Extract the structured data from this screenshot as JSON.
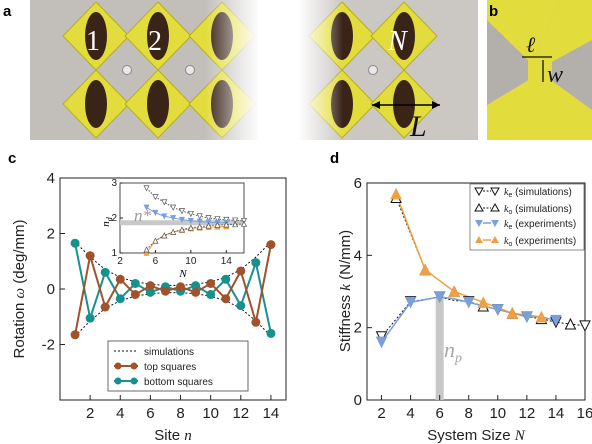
{
  "colors": {
    "top": "#a0522d",
    "bottom": "#17918e",
    "ke_exp": "#7b9fd8",
    "ko_exp": "#f0a043",
    "sim": "#111111",
    "yellow": "#e2dc3c",
    "np_bar": "#c8c8c8"
  },
  "panel_a": {
    "letter": "a",
    "site_labels": [
      "1",
      "2",
      "N"
    ],
    "length_label": "L"
  },
  "panel_b": {
    "letter": "b",
    "ell_label": "ℓ",
    "w_label": "w"
  },
  "panel_c": {
    "letter": "c",
    "ylabel_prefix": "Rotation ",
    "ylabel_sym": "ω",
    "ylabel_unit": " (deg/mm)",
    "xlabel_prefix": "Site ",
    "xlabel_sym": "n",
    "inset": {
      "nstar_label": "n*",
      "ylabel": "n",
      "ylabel_sub": "d",
      "xlabel": "N",
      "xticks": [
        "2",
        "6",
        "10",
        "14"
      ],
      "yticks": [
        "1",
        "2",
        "3"
      ]
    },
    "legend": {
      "sim": "simulations",
      "top": "top squares",
      "bottom": "bottom squares"
    }
  },
  "panel_d": {
    "letter": "d",
    "ylabel_prefix": "Stiffness ",
    "ylabel_sym": "k",
    "ylabel_unit": " (N/mm)",
    "xlabel_prefix": "System Size ",
    "xlabel_sym": "N",
    "np_label": "n",
    "np_sub": "p",
    "legend": [
      {
        "sym": "k",
        "sub": "e",
        "text": " (simulations)"
      },
      {
        "sym": "k",
        "sub": "o",
        "text": " (simulations)"
      },
      {
        "sym": "k",
        "sub": "e",
        "text": " (experiments)"
      },
      {
        "sym": "k",
        "sub": "o",
        "text": " (experiments)"
      }
    ]
  },
  "chart_data": [
    {
      "panel": "c",
      "type": "line",
      "xlabel": "Site n",
      "ylabel": "Rotation ω (deg/mm)",
      "xlim": [
        0,
        15
      ],
      "ylim": [
        -4,
        4
      ],
      "xticks": [
        2,
        4,
        6,
        8,
        10,
        12,
        14
      ],
      "yticks": [
        -2,
        0,
        2,
        4
      ],
      "series": [
        {
          "name": "top squares",
          "x": [
            1,
            2,
            3,
            4,
            5,
            6,
            7,
            8,
            9,
            10,
            11,
            12,
            13,
            14
          ],
          "y": [
            -1.65,
            1.2,
            -0.65,
            0.35,
            -0.2,
            0.12,
            -0.08,
            0.08,
            -0.12,
            0.2,
            -0.35,
            0.65,
            -1.2,
            1.6
          ]
        },
        {
          "name": "bottom squares",
          "x": [
            1,
            2,
            3,
            4,
            5,
            6,
            7,
            8,
            9,
            10,
            11,
            12,
            13,
            14
          ],
          "y": [
            1.65,
            -1.05,
            0.6,
            -0.35,
            0.2,
            -0.12,
            0.08,
            -0.08,
            0.12,
            -0.2,
            0.35,
            -0.6,
            0.95,
            -1.6
          ]
        },
        {
          "name": "simulations",
          "x": [
            1,
            2,
            3,
            4,
            5,
            6,
            7,
            8,
            9,
            10,
            11,
            12,
            13,
            14
          ],
          "envelope": [
            1.7,
            1.15,
            0.7,
            0.42,
            0.26,
            0.17,
            0.13,
            0.13,
            0.17,
            0.26,
            0.42,
            0.7,
            1.15,
            1.7
          ]
        }
      ]
    },
    {
      "panel": "c-inset",
      "type": "line",
      "xlabel": "N",
      "ylabel": "n_d",
      "xlim": [
        2,
        16
      ],
      "ylim": [
        1,
        3
      ],
      "nstar": 1.85,
      "series": [
        {
          "name": "simulations upper",
          "x": [
            5,
            6,
            7,
            8,
            9,
            10,
            11,
            12,
            13,
            14,
            15,
            16
          ],
          "y": [
            2.85,
            2.6,
            2.45,
            2.3,
            2.2,
            2.12,
            2.05,
            2.0,
            1.97,
            1.95,
            1.93,
            1.92
          ]
        },
        {
          "name": "ke experiments",
          "x": [
            5,
            6,
            7,
            8,
            9,
            10,
            11,
            12,
            13,
            14
          ],
          "y": [
            2.3,
            2.15,
            2.05,
            2.0,
            1.95,
            1.92,
            1.9,
            1.88,
            1.87,
            1.86
          ]
        },
        {
          "name": "ko experiments",
          "x": [
            5,
            6,
            7,
            8,
            9,
            10,
            11,
            12,
            13,
            14
          ],
          "y": [
            1.0,
            1.35,
            1.5,
            1.6,
            1.65,
            1.7,
            1.72,
            1.74,
            1.75,
            1.76
          ]
        },
        {
          "name": "simulations lower",
          "x": [
            5,
            6,
            7,
            8,
            9,
            10,
            11,
            12,
            13,
            14,
            15,
            16
          ],
          "y": [
            1.1,
            1.35,
            1.5,
            1.6,
            1.67,
            1.72,
            1.75,
            1.78,
            1.8,
            1.81,
            1.82,
            1.83
          ]
        }
      ]
    },
    {
      "panel": "d",
      "type": "line",
      "xlabel": "System Size N",
      "ylabel": "Stiffness k (N/mm)",
      "xlim": [
        1,
        16
      ],
      "ylim": [
        0,
        6
      ],
      "xticks": [
        2,
        4,
        6,
        8,
        10,
        12,
        14,
        16
      ],
      "yticks": [
        0,
        2,
        4,
        6
      ],
      "np": 6,
      "series": [
        {
          "name": "ke (simulations)",
          "x": [
            2,
            4,
            6,
            8,
            10,
            12,
            14,
            16
          ],
          "y": [
            1.75,
            2.72,
            2.85,
            2.72,
            2.5,
            2.3,
            2.15,
            2.05
          ]
        },
        {
          "name": "ko (simulations)",
          "x": [
            3,
            5,
            7,
            9,
            11,
            13,
            15
          ],
          "y": [
            5.6,
            3.6,
            3.0,
            2.6,
            2.4,
            2.25,
            2.1
          ]
        },
        {
          "name": "ke (experiments)",
          "x": [
            2,
            4,
            6,
            8,
            10,
            12,
            14
          ],
          "y": [
            1.6,
            2.7,
            2.85,
            2.7,
            2.5,
            2.3,
            2.2
          ]
        },
        {
          "name": "ko (experiments)",
          "x": [
            3,
            5,
            7,
            9,
            11,
            13
          ],
          "y": [
            5.7,
            3.6,
            3.0,
            2.7,
            2.4,
            2.3
          ]
        }
      ]
    }
  ]
}
